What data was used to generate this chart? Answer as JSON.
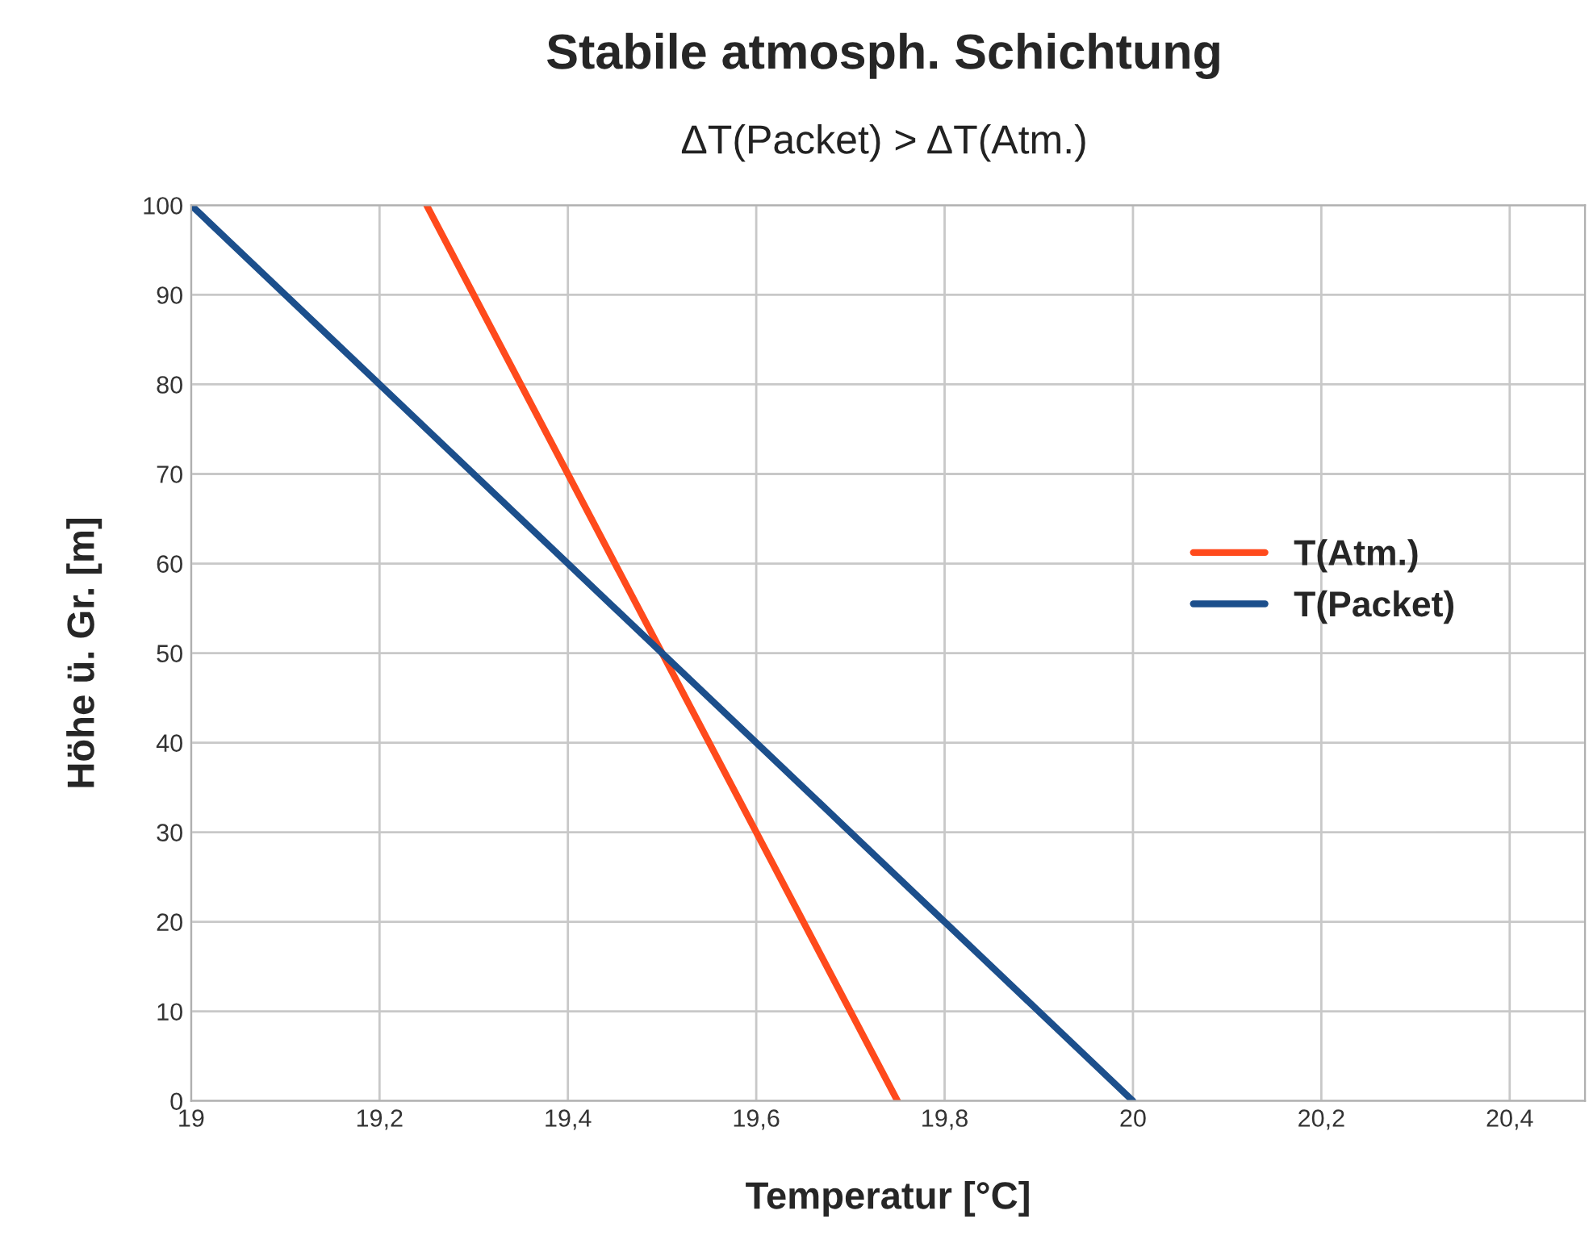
{
  "chart_data": {
    "type": "line",
    "title": "Stabile atmosph. Schichtung",
    "subtitle": "ΔT(Packet) > ΔT(Atm.)",
    "xlabel": "Temperatur [°C]",
    "ylabel": "Höhe ü. Gr. [m]",
    "series": [
      {
        "name": "T(Atm.)",
        "color": "#ff4a1c",
        "x": [
          19.75,
          19.25
        ],
        "values": [
          0,
          100
        ]
      },
      {
        "name": "T(Packet)",
        "color": "#1c4f8c",
        "x": [
          20,
          19
        ],
        "values": [
          0,
          100
        ]
      }
    ],
    "xlim": [
      19,
      20.48
    ],
    "xticks": [
      19,
      {
        "value": 19.2,
        "label": "19,2"
      },
      {
        "value": 19.4,
        "label": "19,4"
      },
      {
        "value": 19.6,
        "label": "19,6"
      },
      {
        "value": 19.8,
        "label": "19,8"
      },
      20,
      {
        "value": 20.2,
        "label": "20,2"
      },
      {
        "value": 20.4,
        "label": "20,4"
      }
    ],
    "ylim": [
      0,
      100
    ],
    "yticks": [
      0,
      10,
      20,
      30,
      40,
      50,
      60,
      70,
      80,
      90,
      100
    ],
    "grid": true,
    "legend": "right",
    "marker": "none",
    "line_style": "solid"
  }
}
